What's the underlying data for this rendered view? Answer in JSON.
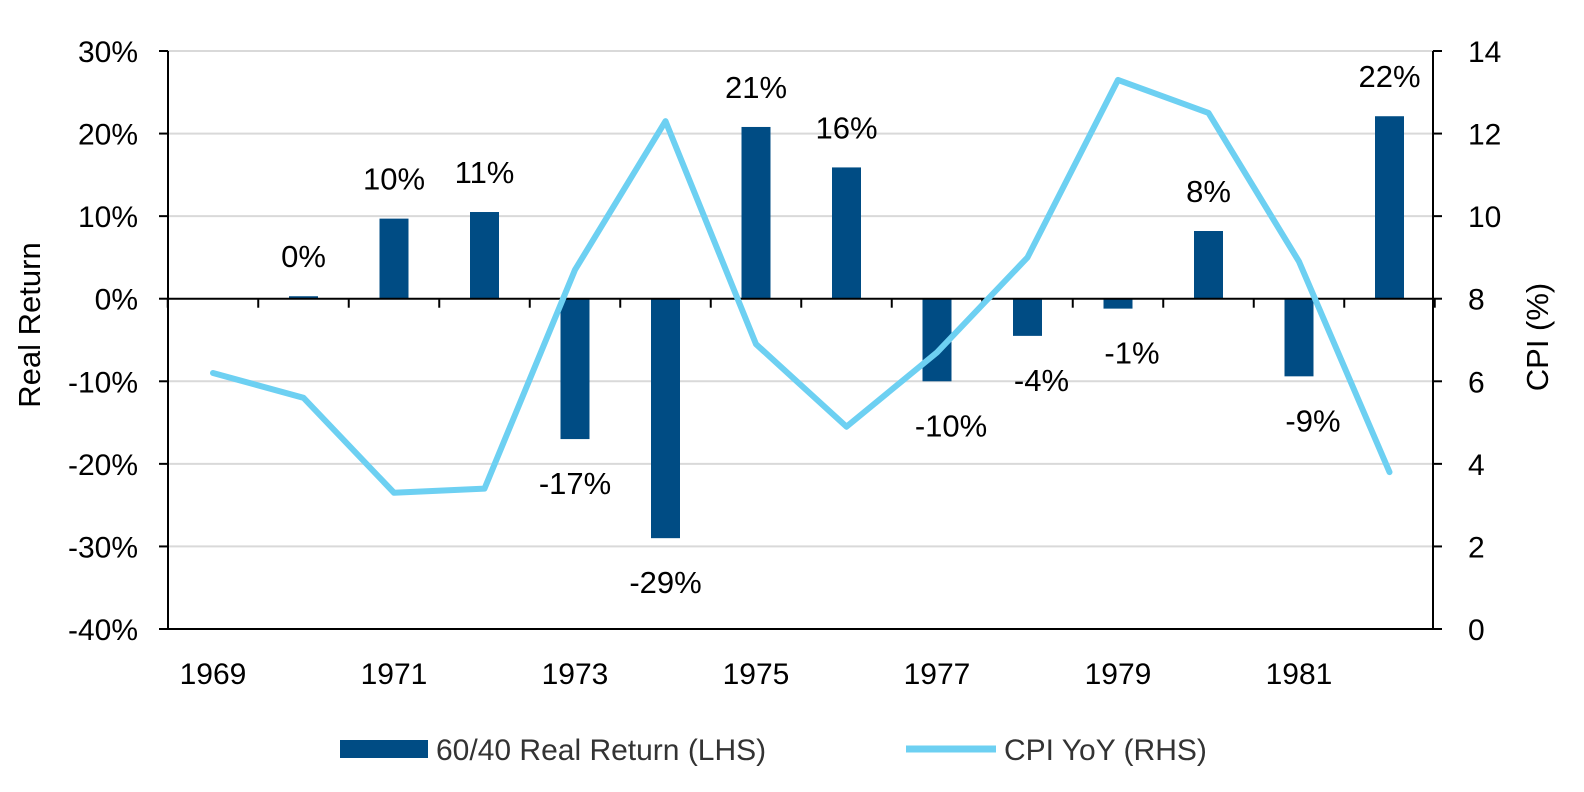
{
  "chart_data": {
    "type": "bar+line",
    "years": [
      1969,
      1970,
      1971,
      1972,
      1973,
      1974,
      1975,
      1976,
      1977,
      1978,
      1979,
      1980,
      1981,
      1982
    ],
    "x_tick_labels": [
      "1969",
      "1971",
      "1973",
      "1975",
      "1977",
      "1979",
      "1981"
    ],
    "series": [
      {
        "name": "60/40 Real Return (LHS)",
        "type": "bar",
        "axis": "left",
        "color": "#004c84",
        "values": [
          null,
          0.3,
          9.7,
          10.5,
          -17,
          -29,
          20.8,
          15.9,
          -10,
          -4.5,
          -1.2,
          8.2,
          -9.4,
          22.1
        ],
        "data_labels": [
          "",
          "0%",
          "10%",
          "11%",
          "-17%",
          "-29%",
          "21%",
          "16%",
          "-10%",
          "-4%",
          "-1%",
          "8%",
          "-9%",
          "22%"
        ]
      },
      {
        "name": "CPI YoY (RHS)",
        "type": "line",
        "axis": "right",
        "color": "#6dd0f2",
        "values": [
          6.2,
          5.6,
          3.3,
          3.4,
          8.7,
          12.3,
          6.9,
          4.9,
          6.7,
          9.0,
          13.3,
          12.5,
          8.9,
          3.8
        ]
      }
    ],
    "y_left": {
      "label": "Real Return",
      "min": -40,
      "max": 30,
      "step": 10,
      "tick_labels": [
        "30%",
        "20%",
        "10%",
        "0%",
        "-10%",
        "-20%",
        "-30%",
        "-40%"
      ]
    },
    "y_right": {
      "label": "CPI (%)",
      "min": 0,
      "max": 14,
      "step": 2,
      "tick_labels": [
        "14",
        "12",
        "10",
        "8",
        "6",
        "4",
        "2",
        "0"
      ]
    },
    "grid": true,
    "legend_position": "bottom"
  }
}
